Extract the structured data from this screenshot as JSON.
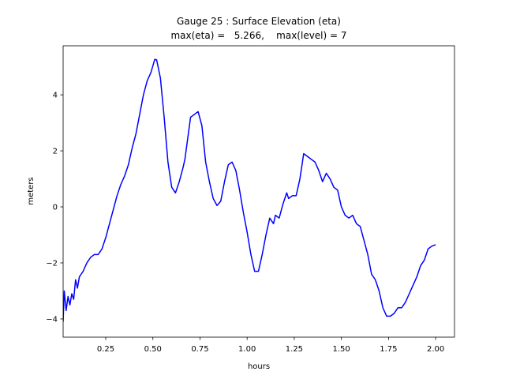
{
  "chart_data": {
    "type": "line",
    "title": "Gauge 25 : Surface Elevation (eta)",
    "subtitle": "max(eta) =   5.266,    max(level) = 7",
    "x_label": "hours",
    "y_label": "meters",
    "xlim": [
      0.024,
      2.1
    ],
    "ylim": [
      -4.65,
      5.75
    ],
    "xticks": [
      0.25,
      {
        "value": 0.5,
        "label": "0.50"
      },
      0.75,
      {
        "value": 1,
        "label": "1.00"
      },
      1.25,
      {
        "value": 1.5,
        "label": "1.50"
      },
      1.75,
      {
        "value": 2,
        "label": "2.00"
      }
    ],
    "yticks": [
      {
        "value": -4,
        "label": "−4"
      },
      {
        "value": -2,
        "label": "−2"
      },
      0,
      2,
      4
    ],
    "grid": false,
    "x": [
      0.024,
      0.03,
      0.04,
      0.05,
      0.06,
      0.07,
      0.08,
      0.09,
      0.1,
      0.11,
      0.13,
      0.15,
      0.17,
      0.19,
      0.21,
      0.23,
      0.25,
      0.27,
      0.29,
      0.31,
      0.33,
      0.35,
      0.37,
      0.39,
      0.41,
      0.43,
      0.45,
      0.47,
      0.49,
      0.51,
      0.52,
      0.54,
      0.56,
      0.58,
      0.6,
      0.62,
      0.64,
      0.66,
      0.67,
      0.69,
      0.7,
      0.72,
      0.74,
      0.76,
      0.78,
      0.8,
      0.82,
      0.84,
      0.86,
      0.88,
      0.9,
      0.92,
      0.94,
      0.96,
      0.98,
      1.0,
      1.02,
      1.04,
      1.06,
      1.08,
      1.1,
      1.12,
      1.14,
      1.15,
      1.17,
      1.19,
      1.21,
      1.22,
      1.24,
      1.26,
      1.28,
      1.3,
      1.32,
      1.34,
      1.36,
      1.38,
      1.4,
      1.42,
      1.44,
      1.46,
      1.48,
      1.5,
      1.52,
      1.54,
      1.56,
      1.58,
      1.6,
      1.62,
      1.64,
      1.66,
      1.68,
      1.7,
      1.72,
      1.74,
      1.76,
      1.78,
      1.8,
      1.82,
      1.84,
      1.86,
      1.88,
      1.9,
      1.92,
      1.94,
      1.96,
      1.98,
      2.0
    ],
    "series": [
      {
        "name": "eta",
        "color": "#0000ff",
        "values": [
          -4.1,
          -3.0,
          -3.7,
          -3.2,
          -3.5,
          -3.1,
          -3.3,
          -2.6,
          -2.9,
          -2.5,
          -2.3,
          -2.0,
          -1.8,
          -1.7,
          -1.7,
          -1.5,
          -1.1,
          -0.6,
          -0.1,
          0.4,
          0.8,
          1.1,
          1.5,
          2.1,
          2.6,
          3.3,
          4.0,
          4.5,
          4.8,
          5.266,
          5.25,
          4.6,
          3.2,
          1.6,
          0.7,
          0.5,
          0.9,
          1.4,
          1.7,
          2.7,
          3.2,
          3.3,
          3.4,
          2.9,
          1.6,
          0.9,
          0.3,
          0.05,
          0.2,
          0.9,
          1.5,
          1.6,
          1.3,
          0.6,
          -0.2,
          -0.9,
          -1.7,
          -2.3,
          -2.3,
          -1.7,
          -1.0,
          -0.4,
          -0.6,
          -0.3,
          -0.4,
          0.1,
          0.5,
          0.3,
          0.4,
          0.4,
          1.0,
          1.9,
          1.8,
          1.7,
          1.6,
          1.3,
          0.9,
          1.2,
          1.0,
          0.7,
          0.6,
          0.0,
          -0.3,
          -0.4,
          -0.3,
          -0.6,
          -0.7,
          -1.2,
          -1.7,
          -2.4,
          -2.6,
          -3.0,
          -3.6,
          -3.9,
          -3.9,
          -3.8,
          -3.6,
          -3.6,
          -3.4,
          -3.1,
          -2.8,
          -2.5,
          -2.1,
          -1.9,
          -1.5,
          -1.4,
          -1.35
        ]
      }
    ]
  }
}
